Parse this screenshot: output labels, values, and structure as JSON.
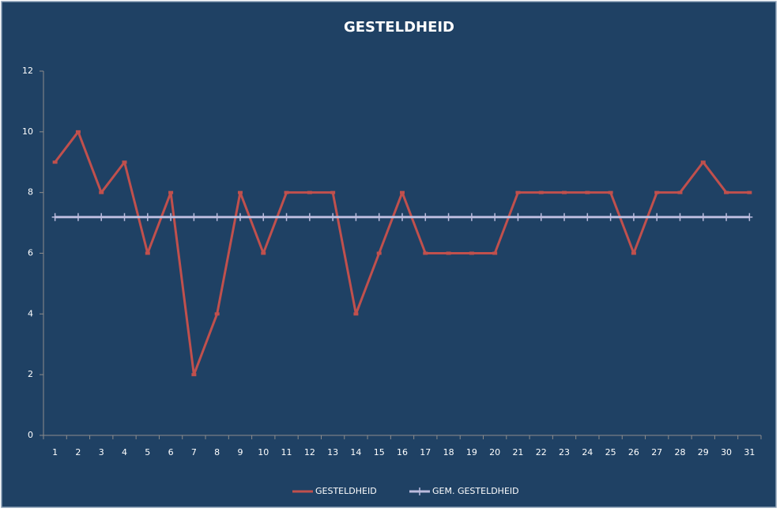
{
  "chart_data": {
    "type": "line",
    "title": "GESTELDHEID",
    "categories": [
      "1",
      "2",
      "3",
      "4",
      "5",
      "6",
      "7",
      "8",
      "9",
      "10",
      "11",
      "12",
      "13",
      "14",
      "15",
      "16",
      "17",
      "18",
      "19",
      "20",
      "21",
      "22",
      "23",
      "24",
      "25",
      "26",
      "27",
      "28",
      "29",
      "30",
      "31"
    ],
    "series": [
      {
        "name": "GESTELDHEID",
        "color": "#c0504d",
        "marker": "dash",
        "values": [
          9,
          10,
          8,
          9,
          6,
          8,
          2,
          4,
          8,
          6,
          8,
          8,
          8,
          4,
          6,
          8,
          6,
          6,
          6,
          6,
          8,
          8,
          8,
          8,
          8,
          6,
          8,
          8,
          9,
          8,
          8
        ]
      },
      {
        "name": "GEM. GESTELDHEID",
        "color": "#bcbcde",
        "marker": "plus",
        "values": [
          7.19,
          7.19,
          7.19,
          7.19,
          7.19,
          7.19,
          7.19,
          7.19,
          7.19,
          7.19,
          7.19,
          7.19,
          7.19,
          7.19,
          7.19,
          7.19,
          7.19,
          7.19,
          7.19,
          7.19,
          7.19,
          7.19,
          7.19,
          7.19,
          7.19,
          7.19,
          7.19,
          7.19,
          7.19,
          7.19,
          7.19
        ]
      }
    ],
    "ylim": [
      0,
      12
    ],
    "yticks": [
      0,
      2,
      4,
      6,
      8,
      10,
      12
    ],
    "grid": false,
    "legend": "bottom"
  }
}
